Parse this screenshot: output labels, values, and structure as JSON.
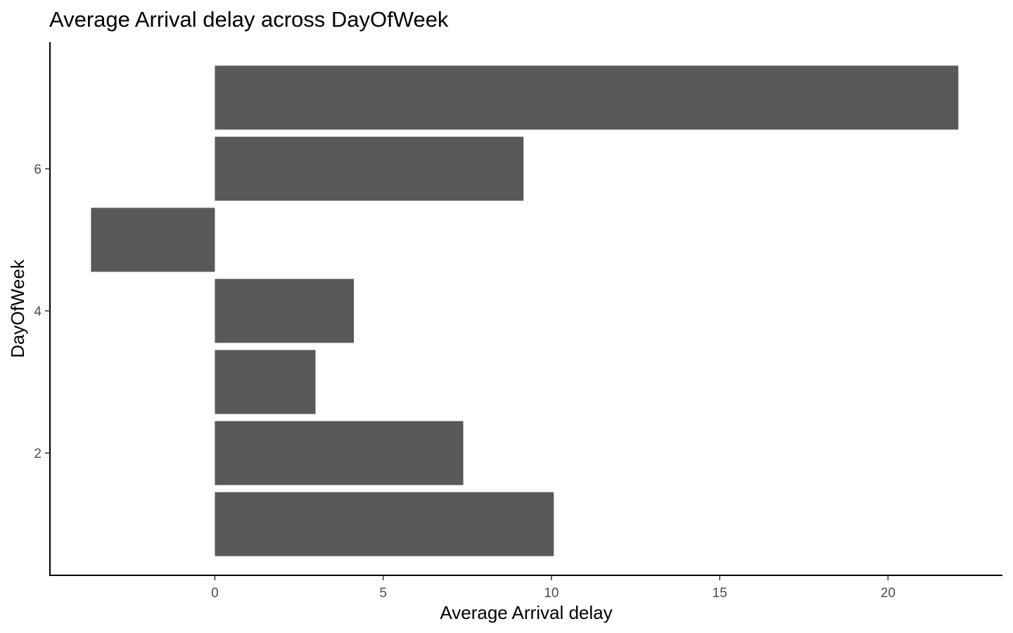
{
  "chart_data": {
    "type": "bar",
    "orientation": "horizontal",
    "title": "Average Arrival delay across DayOfWeek",
    "xlabel": "Average Arrival delay",
    "ylabel": "DayOfWeek",
    "categories": [
      1,
      2,
      3,
      4,
      5,
      6,
      7
    ],
    "values": [
      10.07,
      7.38,
      2.99,
      4.13,
      -3.68,
      9.17,
      22.09
    ],
    "xlim": [
      -4.9,
      23.4
    ],
    "ylim": [
      0.28,
      7.78
    ],
    "x_ticks": [
      0,
      5,
      10,
      15,
      20
    ],
    "y_ticks": [
      2,
      4,
      6
    ],
    "bar_color": "#595959",
    "grid": false,
    "legend": "none"
  }
}
